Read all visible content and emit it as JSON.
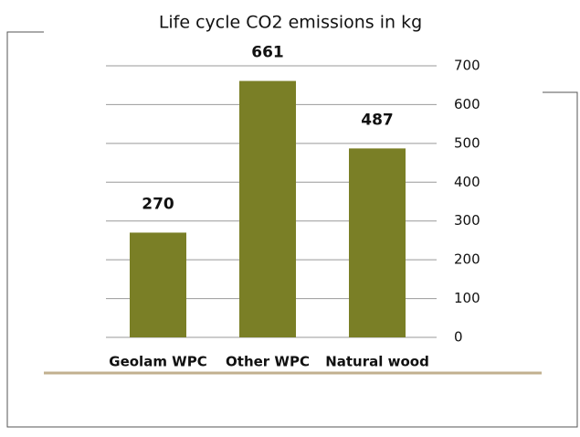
{
  "chart_data": {
    "type": "bar",
    "title": "Life cycle CO2 emissions in kg",
    "categories": [
      "Geolam WPC",
      "Other WPC",
      "Natural wood"
    ],
    "values": [
      270,
      661,
      487
    ],
    "color": "#7a7f26",
    "ylim": [
      0,
      700
    ],
    "yticks": [
      0,
      100,
      200,
      300,
      400,
      500,
      600,
      700
    ],
    "grid": true,
    "y_axis_side": "right"
  }
}
